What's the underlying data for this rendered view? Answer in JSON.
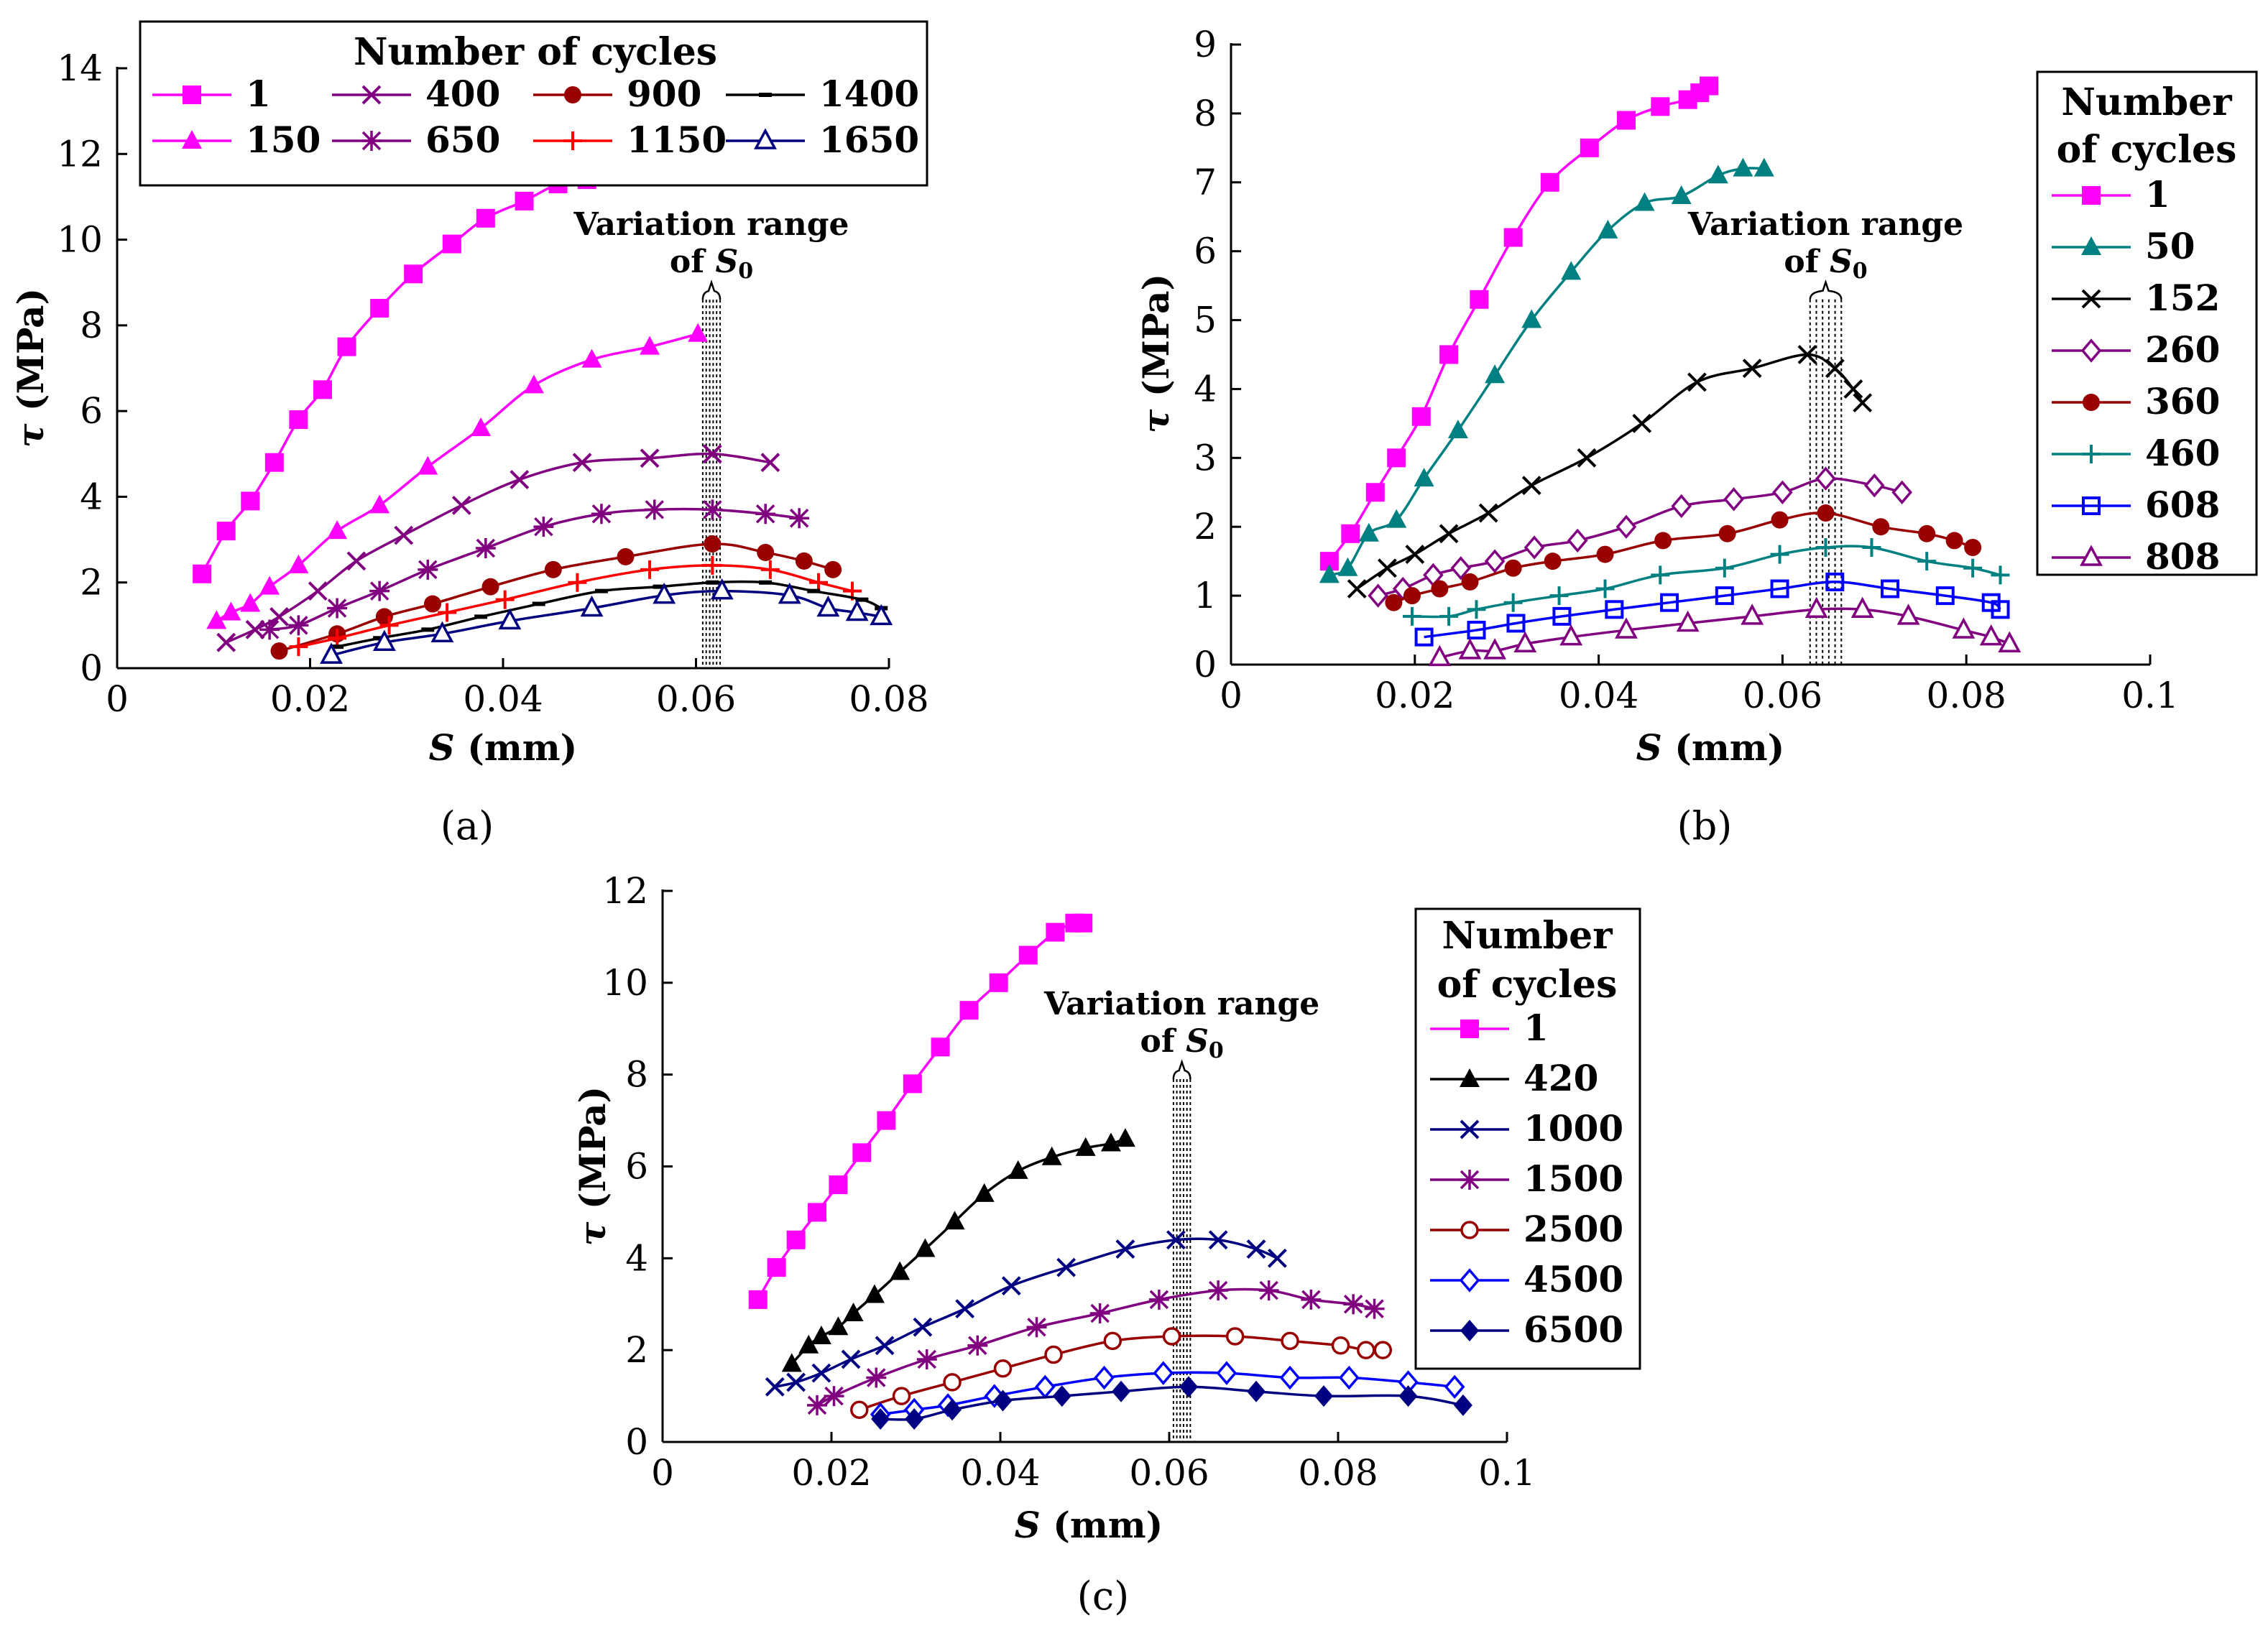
{
  "figure_title": "",
  "chart_data": [
    {
      "id": "a",
      "type": "line",
      "panel_label": "(a)",
      "xlabel_symbol": "S",
      "xlabel_unit": "(mm)",
      "ylabel_symbol": "τ",
      "ylabel_unit": "(MPa)",
      "xlim": [
        0,
        0.08
      ],
      "ylim": [
        0,
        14
      ],
      "xticks": [
        0,
        0.02,
        0.04,
        0.06,
        0.08
      ],
      "xtick_labels": [
        "0",
        "0.02",
        "0.04",
        "0.06",
        "0.08"
      ],
      "yticks": [
        0,
        2,
        4,
        6,
        8,
        10,
        12,
        14
      ],
      "ytick_labels": [
        "0",
        "2",
        "4",
        "6",
        "8",
        "10",
        "12",
        "14"
      ],
      "legend_title": "Number of cycles",
      "legend_placement": "top-center",
      "annotation": {
        "line1": "Variation range",
        "line2": "of S",
        "subscript": "0",
        "range": [
          0.0607,
          0.0625
        ],
        "top": 8.6
      },
      "series": [
        {
          "name": "1",
          "color": "#ff00ff",
          "marker": "square-filled",
          "x": [
            0.0088,
            0.0113,
            0.0138,
            0.0163,
            0.0188,
            0.0213,
            0.0238,
            0.0272,
            0.0307,
            0.0347,
            0.0382,
            0.0422,
            0.0457,
            0.0487,
            0.0502
          ],
          "y": [
            2.2,
            3.2,
            3.9,
            4.8,
            5.8,
            6.5,
            7.5,
            8.4,
            9.2,
            9.9,
            10.5,
            10.9,
            11.3,
            11.4,
            11.5
          ]
        },
        {
          "name": "150",
          "color": "#ff00ff",
          "marker": "triangle-filled",
          "x": [
            0.0103,
            0.0118,
            0.0138,
            0.0158,
            0.0188,
            0.0228,
            0.0272,
            0.0322,
            0.0377,
            0.0432,
            0.0492,
            0.0552,
            0.0602
          ],
          "y": [
            1.1,
            1.3,
            1.5,
            1.9,
            2.4,
            3.2,
            3.8,
            4.7,
            5.6,
            6.6,
            7.2,
            7.5,
            7.8
          ]
        },
        {
          "name": "400",
          "color": "#800080",
          "marker": "x",
          "x": [
            0.0113,
            0.0143,
            0.0168,
            0.0208,
            0.0248,
            0.0297,
            0.0357,
            0.0417,
            0.0482,
            0.0552,
            0.0617,
            0.0677
          ],
          "y": [
            0.6,
            0.9,
            1.2,
            1.8,
            2.5,
            3.1,
            3.8,
            4.4,
            4.8,
            4.9,
            5.0,
            4.8
          ]
        },
        {
          "name": "650",
          "color": "#800080",
          "marker": "asterisk",
          "x": [
            0.0158,
            0.0188,
            0.0228,
            0.0272,
            0.0322,
            0.0382,
            0.0442,
            0.0502,
            0.0557,
            0.0617,
            0.0672,
            0.0707
          ],
          "y": [
            0.9,
            1.0,
            1.4,
            1.8,
            2.3,
            2.8,
            3.3,
            3.6,
            3.7,
            3.7,
            3.6,
            3.5
          ]
        },
        {
          "name": "900",
          "color": "#990000",
          "marker": "circle-filled",
          "x": [
            0.0168,
            0.0228,
            0.0277,
            0.0327,
            0.0387,
            0.0452,
            0.0527,
            0.0617,
            0.0672,
            0.0712,
            0.0742
          ],
          "y": [
            0.4,
            0.8,
            1.2,
            1.5,
            1.9,
            2.3,
            2.6,
            2.9,
            2.7,
            2.5,
            2.3
          ]
        },
        {
          "name": "1150",
          "color": "#ff0000",
          "marker": "plus",
          "x": [
            0.0188,
            0.0228,
            0.0282,
            0.0342,
            0.0402,
            0.0477,
            0.0552,
            0.0617,
            0.0677,
            0.0727,
            0.0762
          ],
          "y": [
            0.5,
            0.7,
            1.0,
            1.3,
            1.6,
            2.0,
            2.3,
            2.4,
            2.3,
            2.0,
            1.8
          ]
        },
        {
          "name": "1400",
          "color": "#000000",
          "marker": "dash",
          "x": [
            0.0228,
            0.0272,
            0.0322,
            0.0377,
            0.0437,
            0.0502,
            0.0562,
            0.0617,
            0.0672,
            0.0722,
            0.0772,
            0.0792
          ],
          "y": [
            0.5,
            0.7,
            0.9,
            1.2,
            1.5,
            1.8,
            1.9,
            2.0,
            2.0,
            1.8,
            1.6,
            1.4
          ]
        },
        {
          "name": "1650",
          "color": "#000080",
          "marker": "triangle-open",
          "x": [
            0.0222,
            0.0277,
            0.0337,
            0.0407,
            0.0492,
            0.0567,
            0.0627,
            0.0697,
            0.0737,
            0.0767,
            0.0792
          ],
          "y": [
            0.3,
            0.6,
            0.8,
            1.1,
            1.4,
            1.7,
            1.8,
            1.7,
            1.4,
            1.3,
            1.2
          ]
        }
      ]
    },
    {
      "id": "b",
      "type": "line",
      "panel_label": "(b)",
      "xlabel_symbol": "S",
      "xlabel_unit": "(mm)",
      "ylabel_symbol": "τ",
      "ylabel_unit": "(MPa)",
      "xlim": [
        0,
        0.1
      ],
      "ylim": [
        0,
        9
      ],
      "xticks": [
        0,
        0.02,
        0.04,
        0.06,
        0.08,
        0.1
      ],
      "xtick_labels": [
        "0",
        "0.02",
        "0.04",
        "0.06",
        "0.08",
        "0.1"
      ],
      "yticks": [
        0,
        1,
        2,
        3,
        4,
        5,
        6,
        7,
        8,
        9
      ],
      "ytick_labels": [
        "0",
        "1",
        "2",
        "3",
        "4",
        "5",
        "6",
        "7",
        "8",
        "9"
      ],
      "legend_title": "Number of cycles",
      "legend_placement": "right",
      "annotation": {
        "line1": "Variation range",
        "line2": "of S",
        "subscript": "0",
        "range": [
          0.063,
          0.0664
        ],
        "top": 5.3
      },
      "series": [
        {
          "name": "1",
          "color": "#ff00ff",
          "marker": "square-filled",
          "x": [
            0.0107,
            0.013,
            0.0157,
            0.018,
            0.0207,
            0.0237,
            0.027,
            0.0307,
            0.0347,
            0.039,
            0.043,
            0.0467,
            0.0497,
            0.051,
            0.052
          ],
          "y": [
            1.5,
            1.9,
            2.5,
            3.0,
            3.6,
            4.5,
            5.3,
            6.2,
            7.0,
            7.5,
            7.9,
            8.1,
            8.2,
            8.3,
            8.4
          ]
        },
        {
          "name": "50",
          "color": "#008080",
          "marker": "triangle-filled",
          "x": [
            0.0107,
            0.0127,
            0.015,
            0.018,
            0.021,
            0.0247,
            0.0287,
            0.0327,
            0.037,
            0.041,
            0.045,
            0.049,
            0.053,
            0.0557,
            0.058
          ],
          "y": [
            1.3,
            1.4,
            1.9,
            2.1,
            2.7,
            3.4,
            4.2,
            5.0,
            5.7,
            6.3,
            6.7,
            6.8,
            7.1,
            7.2,
            7.2
          ]
        },
        {
          "name": "152",
          "color": "#000000",
          "marker": "x",
          "x": [
            0.0137,
            0.017,
            0.02,
            0.0237,
            0.028,
            0.0327,
            0.0387,
            0.0447,
            0.0507,
            0.0567,
            0.0627,
            0.0657,
            0.0677,
            0.0687
          ],
          "y": [
            1.1,
            1.4,
            1.6,
            1.9,
            2.2,
            2.6,
            3.0,
            3.5,
            4.1,
            4.3,
            4.5,
            4.3,
            4.0,
            3.8
          ]
        },
        {
          "name": "260",
          "color": "#800080",
          "marker": "diamond-open",
          "x": [
            0.016,
            0.0187,
            0.022,
            0.025,
            0.0287,
            0.033,
            0.0377,
            0.043,
            0.049,
            0.0547,
            0.06,
            0.0647,
            0.07,
            0.073
          ],
          "y": [
            1.0,
            1.1,
            1.3,
            1.4,
            1.5,
            1.7,
            1.8,
            2.0,
            2.3,
            2.4,
            2.5,
            2.7,
            2.6,
            2.5
          ]
        },
        {
          "name": "360",
          "color": "#990000",
          "marker": "circle-filled",
          "x": [
            0.0177,
            0.0197,
            0.0227,
            0.026,
            0.0307,
            0.035,
            0.0407,
            0.047,
            0.054,
            0.0597,
            0.0647,
            0.0707,
            0.0757,
            0.0787,
            0.0807
          ],
          "y": [
            0.9,
            1.0,
            1.1,
            1.2,
            1.4,
            1.5,
            1.6,
            1.8,
            1.9,
            2.1,
            2.2,
            2.0,
            1.9,
            1.8,
            1.7
          ]
        },
        {
          "name": "460",
          "color": "#008080",
          "marker": "plus",
          "x": [
            0.0197,
            0.0237,
            0.0267,
            0.0307,
            0.0357,
            0.0407,
            0.0467,
            0.0537,
            0.0597,
            0.0647,
            0.0697,
            0.0757,
            0.0807,
            0.0837
          ],
          "y": [
            0.7,
            0.7,
            0.8,
            0.9,
            1.0,
            1.1,
            1.3,
            1.4,
            1.6,
            1.7,
            1.7,
            1.5,
            1.4,
            1.3
          ]
        },
        {
          "name": "608",
          "color": "#0000ff",
          "marker": "square-open",
          "x": [
            0.021,
            0.0267,
            0.031,
            0.036,
            0.0417,
            0.0477,
            0.0537,
            0.0597,
            0.0657,
            0.0717,
            0.0777,
            0.0827,
            0.0837
          ],
          "y": [
            0.4,
            0.5,
            0.6,
            0.7,
            0.8,
            0.9,
            1.0,
            1.1,
            1.2,
            1.1,
            1.0,
            0.9,
            0.8
          ]
        },
        {
          "name": "808",
          "color": "#800080",
          "marker": "triangle-open",
          "x": [
            0.0227,
            0.026,
            0.0287,
            0.032,
            0.037,
            0.043,
            0.0497,
            0.0567,
            0.0637,
            0.0687,
            0.0737,
            0.0797,
            0.0827,
            0.0847
          ],
          "y": [
            0.1,
            0.2,
            0.2,
            0.3,
            0.4,
            0.5,
            0.6,
            0.7,
            0.8,
            0.8,
            0.7,
            0.5,
            0.4,
            0.3
          ]
        }
      ]
    },
    {
      "id": "c",
      "type": "line",
      "panel_label": "(c)",
      "xlabel_symbol": "S",
      "xlabel_unit": "(mm)",
      "ylabel_symbol": "τ",
      "ylabel_unit": "(MPa)",
      "xlim": [
        0,
        0.1
      ],
      "ylim": [
        0,
        12
      ],
      "xticks": [
        0,
        0.02,
        0.04,
        0.06,
        0.08,
        0.1
      ],
      "xtick_labels": [
        "0",
        "0.02",
        "0.04",
        "0.06",
        "0.08",
        "0.1"
      ],
      "yticks": [
        0,
        2,
        4,
        6,
        8,
        10,
        12
      ],
      "ytick_labels": [
        "0",
        "2",
        "4",
        "6",
        "8",
        "10",
        "12"
      ],
      "legend_title": "Number of cycles",
      "legend_placement": "right",
      "annotation": {
        "line1": "Variation range",
        "line2": "of S",
        "subscript": "0",
        "range": [
          0.0605,
          0.0625
        ],
        "top": 7.9
      },
      "series": [
        {
          "name": "1",
          "color": "#ff00ff",
          "marker": "square-filled",
          "x": [
            0.0113,
            0.0135,
            0.0158,
            0.0183,
            0.0208,
            0.0236,
            0.0265,
            0.0296,
            0.0329,
            0.0363,
            0.0398,
            0.0433,
            0.0465,
            0.0488,
            0.0498
          ],
          "y": [
            3.1,
            3.8,
            4.4,
            5.0,
            5.6,
            6.3,
            7.0,
            7.8,
            8.6,
            9.4,
            10.0,
            10.6,
            11.1,
            11.3,
            11.3
          ]
        },
        {
          "name": "420",
          "color": "#000000",
          "marker": "triangle-filled",
          "x": [
            0.0153,
            0.0173,
            0.0188,
            0.0208,
            0.0226,
            0.0251,
            0.0281,
            0.0311,
            0.0346,
            0.0381,
            0.0421,
            0.0461,
            0.0501,
            0.0531,
            0.0548
          ],
          "y": [
            1.7,
            2.1,
            2.3,
            2.5,
            2.8,
            3.2,
            3.7,
            4.2,
            4.8,
            5.4,
            5.9,
            6.2,
            6.4,
            6.5,
            6.6
          ]
        },
        {
          "name": "1000",
          "color": "#000080",
          "marker": "x",
          "x": [
            0.0133,
            0.0158,
            0.0188,
            0.0223,
            0.0263,
            0.0308,
            0.0358,
            0.0413,
            0.0478,
            0.0548,
            0.0608,
            0.0658,
            0.0703,
            0.0728
          ],
          "y": [
            1.2,
            1.3,
            1.5,
            1.8,
            2.1,
            2.5,
            2.9,
            3.4,
            3.8,
            4.2,
            4.4,
            4.4,
            4.2,
            4.0
          ]
        },
        {
          "name": "1500",
          "color": "#800080",
          "marker": "asterisk",
          "x": [
            0.0183,
            0.0203,
            0.0253,
            0.0313,
            0.0373,
            0.0443,
            0.0518,
            0.0588,
            0.0658,
            0.0718,
            0.0768,
            0.0818,
            0.0843
          ],
          "y": [
            0.8,
            1.0,
            1.4,
            1.8,
            2.1,
            2.5,
            2.8,
            3.1,
            3.3,
            3.3,
            3.1,
            3.0,
            2.9
          ]
        },
        {
          "name": "2500",
          "color": "#990000",
          "marker": "circle-open",
          "x": [
            0.0233,
            0.0283,
            0.0343,
            0.0403,
            0.0463,
            0.0533,
            0.0603,
            0.0678,
            0.0743,
            0.0803,
            0.0833,
            0.0853
          ],
          "y": [
            0.7,
            1.0,
            1.3,
            1.6,
            1.9,
            2.2,
            2.3,
            2.3,
            2.2,
            2.1,
            2.0,
            2.0
          ]
        },
        {
          "name": "4500",
          "color": "#0000ff",
          "marker": "diamond-open",
          "x": [
            0.0258,
            0.0298,
            0.0338,
            0.0393,
            0.0453,
            0.0523,
            0.0593,
            0.0668,
            0.0743,
            0.0813,
            0.0883,
            0.0938
          ],
          "y": [
            0.6,
            0.7,
            0.8,
            1.0,
            1.2,
            1.4,
            1.5,
            1.5,
            1.4,
            1.4,
            1.3,
            1.2
          ]
        },
        {
          "name": "6500",
          "color": "#000080",
          "marker": "diamond-filled",
          "x": [
            0.0258,
            0.0298,
            0.0343,
            0.0403,
            0.0473,
            0.0543,
            0.0623,
            0.0703,
            0.0783,
            0.0883,
            0.0948
          ],
          "y": [
            0.5,
            0.5,
            0.7,
            0.9,
            1.0,
            1.1,
            1.2,
            1.1,
            1.0,
            1.0,
            0.8
          ]
        }
      ]
    }
  ]
}
